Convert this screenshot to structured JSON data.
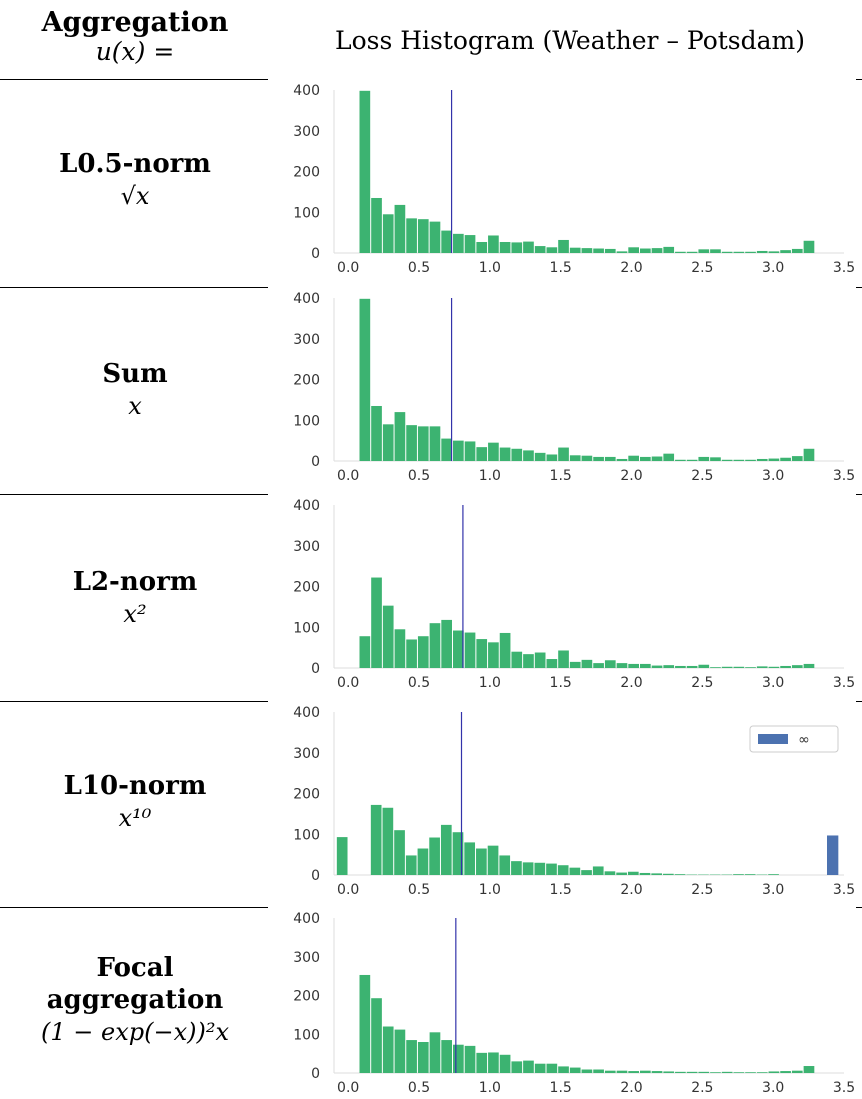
{
  "header": {
    "left_title": "Aggregation",
    "left_subtitle": "u(x) =",
    "right_title": "Loss Histogram (Weather – Potsdam)"
  },
  "rows": [
    {
      "label": "L0.5-norm",
      "formula": "√x"
    },
    {
      "label": "Sum",
      "formula": "x"
    },
    {
      "label": "L2-norm",
      "formula": "x²"
    },
    {
      "label": "L10-norm",
      "formula": "x¹⁰"
    },
    {
      "label": "Focal aggregation",
      "formula": "(1 − exp(−x))²x"
    }
  ],
  "colors": {
    "bar": "#3cb371",
    "vline": "#3333aa",
    "inf_bar": "#4c72b0"
  },
  "chart_data": [
    {
      "type": "bar",
      "xlim": [
        -0.1,
        3.5
      ],
      "ylim": [
        0,
        400
      ],
      "xticks": [
        "0.0",
        "0.5",
        "1.0",
        "1.5",
        "2.0",
        "2.5",
        "3.0",
        "3.5"
      ],
      "yticks": [
        "0",
        "100",
        "200",
        "300",
        "400"
      ],
      "bin_start": 0.08,
      "bin_width": 0.0825,
      "values": [
        398,
        135,
        95,
        118,
        85,
        83,
        77,
        55,
        47,
        44,
        27,
        43,
        27,
        26,
        28,
        17,
        14,
        32,
        13,
        12,
        11,
        10,
        4,
        14,
        11,
        12,
        15,
        3,
        3,
        9,
        9,
        3,
        3,
        3,
        5,
        4,
        7,
        10,
        30
      ],
      "vline": 0.73
    },
    {
      "type": "bar",
      "xlim": [
        -0.1,
        3.5
      ],
      "ylim": [
        0,
        400
      ],
      "xticks": [
        "0.0",
        "0.5",
        "1.0",
        "1.5",
        "2.0",
        "2.5",
        "3.0",
        "3.5"
      ],
      "yticks": [
        "0",
        "100",
        "200",
        "300",
        "400"
      ],
      "bin_start": 0.08,
      "bin_width": 0.0825,
      "values": [
        398,
        135,
        90,
        120,
        88,
        85,
        85,
        55,
        50,
        48,
        34,
        45,
        33,
        30,
        26,
        20,
        16,
        33,
        14,
        13,
        10,
        10,
        5,
        13,
        10,
        11,
        18,
        3,
        3,
        10,
        9,
        3,
        3,
        3,
        5,
        6,
        8,
        12,
        30
      ],
      "vline": 0.73
    },
    {
      "type": "bar",
      "xlim": [
        -0.1,
        3.5
      ],
      "ylim": [
        0,
        400
      ],
      "xticks": [
        "0.0",
        "0.5",
        "1.0",
        "1.5",
        "2.0",
        "2.5",
        "3.0",
        "3.5"
      ],
      "yticks": [
        "0",
        "100",
        "200",
        "300",
        "400"
      ],
      "bin_start": 0.08,
      "bin_width": 0.0825,
      "values": [
        78,
        222,
        153,
        95,
        70,
        78,
        110,
        118,
        92,
        87,
        71,
        63,
        86,
        40,
        34,
        38,
        22,
        43,
        15,
        20,
        12,
        19,
        12,
        10,
        10,
        6,
        7,
        5,
        5,
        8,
        2,
        3,
        3,
        2,
        4,
        3,
        5,
        7,
        10
      ],
      "vline": 0.81
    },
    {
      "type": "bar",
      "xlim": [
        -0.1,
        3.5
      ],
      "ylim": [
        0,
        400
      ],
      "xticks": [
        "0.0",
        "0.5",
        "1.0",
        "1.5",
        "2.0",
        "2.5",
        "3.0",
        "3.5"
      ],
      "yticks": [
        "0",
        "100",
        "200",
        "300",
        "400"
      ],
      "values": [
        93,
        0,
        172,
        165,
        110,
        48,
        65,
        92,
        123,
        105,
        80,
        65,
        72,
        48,
        34,
        31,
        30,
        28,
        24,
        18,
        12,
        21,
        9,
        6,
        8,
        5,
        4,
        3,
        2,
        1,
        1,
        1,
        1,
        2,
        2,
        1,
        2
      ],
      "vline": 0.8,
      "inf_value": 97,
      "legend": "∞"
    },
    {
      "type": "bar",
      "xlim": [
        -0.1,
        3.5
      ],
      "ylim": [
        0,
        400
      ],
      "xticks": [
        "0.0",
        "0.5",
        "1.0",
        "1.5",
        "2.0",
        "2.5",
        "3.0",
        "3.5"
      ],
      "yticks": [
        "0",
        "100",
        "200",
        "300",
        "400"
      ],
      "bin_start": 0.08,
      "bin_width": 0.0825,
      "values": [
        253,
        193,
        120,
        112,
        85,
        80,
        105,
        85,
        73,
        70,
        52,
        53,
        47,
        30,
        32,
        24,
        24,
        17,
        14,
        9,
        9,
        6,
        6,
        5,
        6,
        5,
        4,
        3,
        3,
        3,
        2,
        3,
        2,
        2,
        2,
        4,
        5,
        6,
        18
      ],
      "vline": 0.76
    }
  ]
}
